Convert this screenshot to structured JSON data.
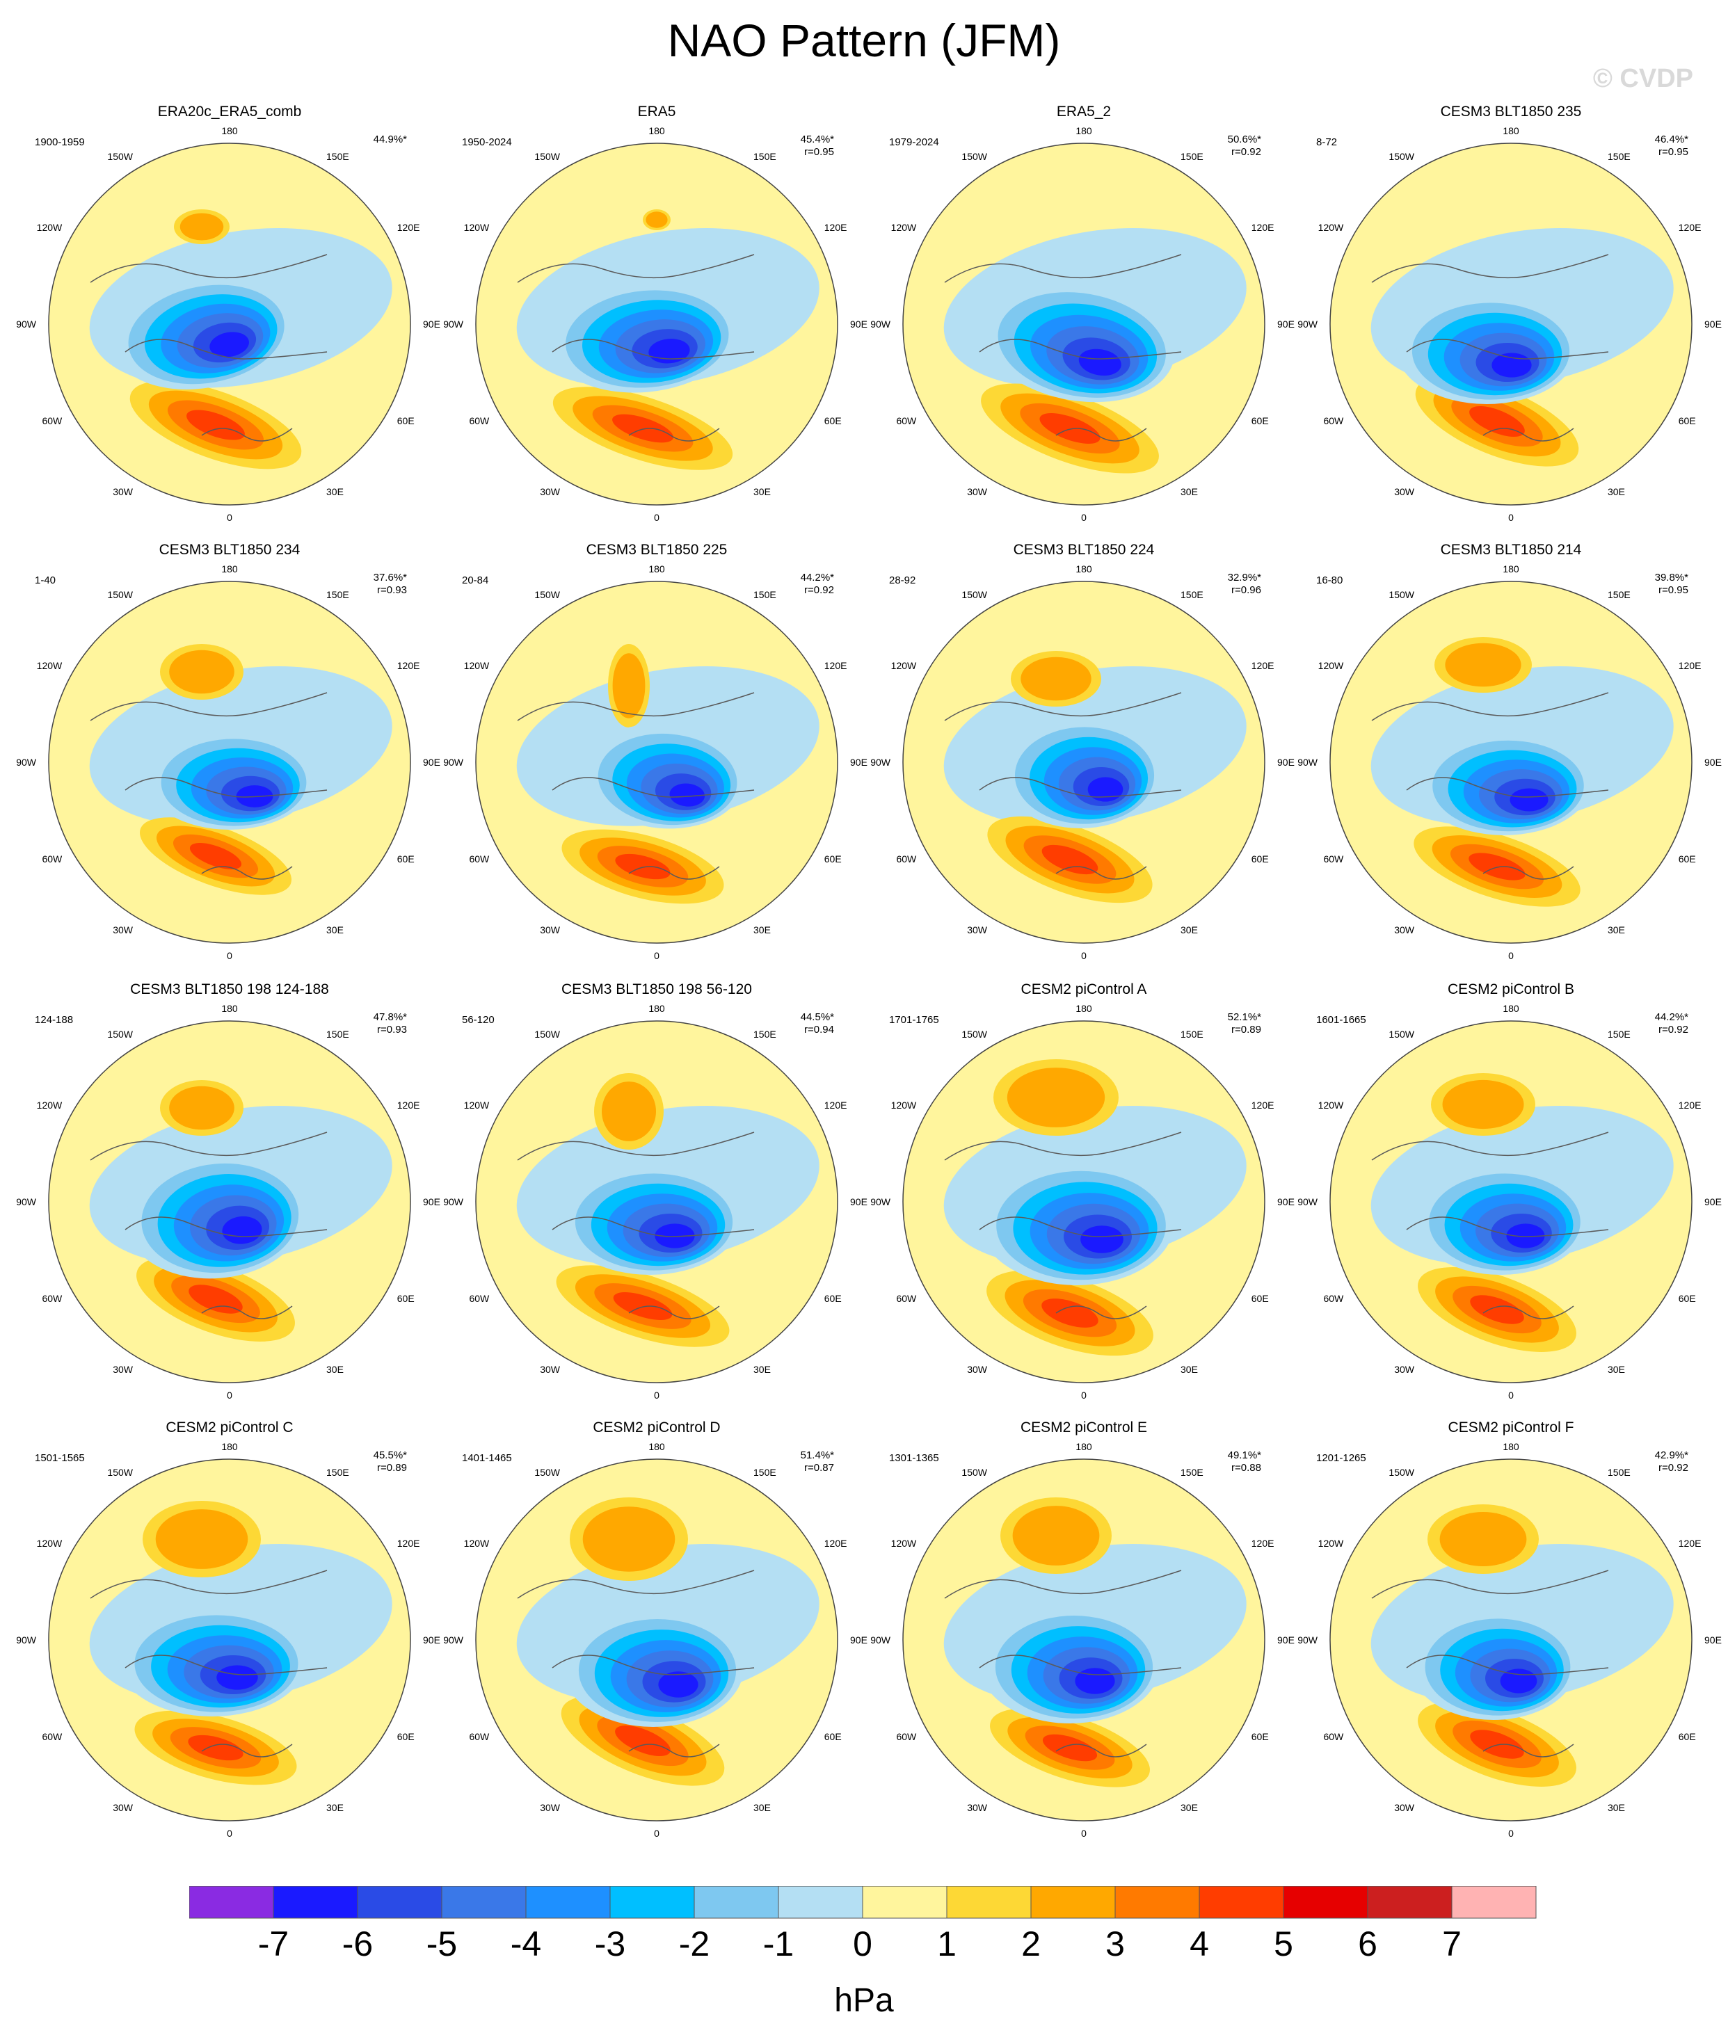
{
  "title": "NAO Pattern (JFM)",
  "watermark": "© CVDP",
  "lon_labels": {
    "top": "180",
    "bottom": "0",
    "left_upper": "150W",
    "left_mid_upper": "120W",
    "left_mid": "90W",
    "left_mid_lower": "60W",
    "left_lower": "30W",
    "right_upper": "150E",
    "right_mid_upper": "120E",
    "right_mid": "90E",
    "right_mid_lower": "60E",
    "right_lower": "30E"
  },
  "panels": [
    {
      "title": "ERA20c_ERA5_comb",
      "years": "1900-1959",
      "pct": "44.9%*",
      "r": ""
    },
    {
      "title": "ERA5",
      "years": "1950-2024",
      "pct": "45.4%*",
      "r": "r=0.95"
    },
    {
      "title": "ERA5_2",
      "years": "1979-2024",
      "pct": "50.6%*",
      "r": "r=0.92"
    },
    {
      "title": "CESM3 BLT1850 235",
      "years": "8-72",
      "pct": "46.4%*",
      "r": "r=0.95"
    },
    {
      "title": "CESM3 BLT1850 234",
      "years": "1-40",
      "pct": "37.6%*",
      "r": "r=0.93"
    },
    {
      "title": "CESM3 BLT1850 225",
      "years": "20-84",
      "pct": "44.2%*",
      "r": "r=0.92"
    },
    {
      "title": "CESM3 BLT1850 224",
      "years": "28-92",
      "pct": "32.9%*",
      "r": "r=0.96"
    },
    {
      "title": "CESM3 BLT1850 214",
      "years": "16-80",
      "pct": "39.8%*",
      "r": "r=0.95"
    },
    {
      "title": "CESM3 BLT1850 198 124-188",
      "years": "124-188",
      "pct": "47.8%*",
      "r": "r=0.93"
    },
    {
      "title": "CESM3 BLT1850 198 56-120",
      "years": "56-120",
      "pct": "44.5%*",
      "r": "r=0.94"
    },
    {
      "title": "CESM2 piControl A",
      "years": "1701-1765",
      "pct": "52.1%*",
      "r": "r=0.89"
    },
    {
      "title": "CESM2 piControl B",
      "years": "1601-1665",
      "pct": "44.2%*",
      "r": "r=0.92"
    },
    {
      "title": "CESM2 piControl C",
      "years": "1501-1565",
      "pct": "45.5%*",
      "r": "r=0.89"
    },
    {
      "title": "CESM2 piControl D",
      "years": "1401-1465",
      "pct": "51.4%*",
      "r": "r=0.87"
    },
    {
      "title": "CESM2 piControl E",
      "years": "1301-1365",
      "pct": "49.1%*",
      "r": "r=0.88"
    },
    {
      "title": "CESM2 piControl F",
      "years": "1201-1265",
      "pct": "42.9%*",
      "r": "r=0.92"
    }
  ],
  "colorbar": {
    "label": "hPa",
    "ticks": [
      "-7",
      "-6",
      "-5",
      "-4",
      "-3",
      "-2",
      "-1",
      "0",
      "1",
      "2",
      "3",
      "4",
      "5",
      "6",
      "7"
    ],
    "colors": [
      "#8a2be2",
      "#1a1aff",
      "#2a4be6",
      "#3a78e8",
      "#1e90ff",
      "#00bfff",
      "#7ec8f0",
      "#b4dff3",
      "#fff59d",
      "#fdd835",
      "#ffa800",
      "#ff7a00",
      "#ff3d00",
      "#e60000",
      "#cc1f1f",
      "#ffb3b3"
    ]
  },
  "palette": {
    "zero_neg": "#b4dff3",
    "zero_pos": "#fff59d",
    "coast": "#5a5a5a"
  }
}
